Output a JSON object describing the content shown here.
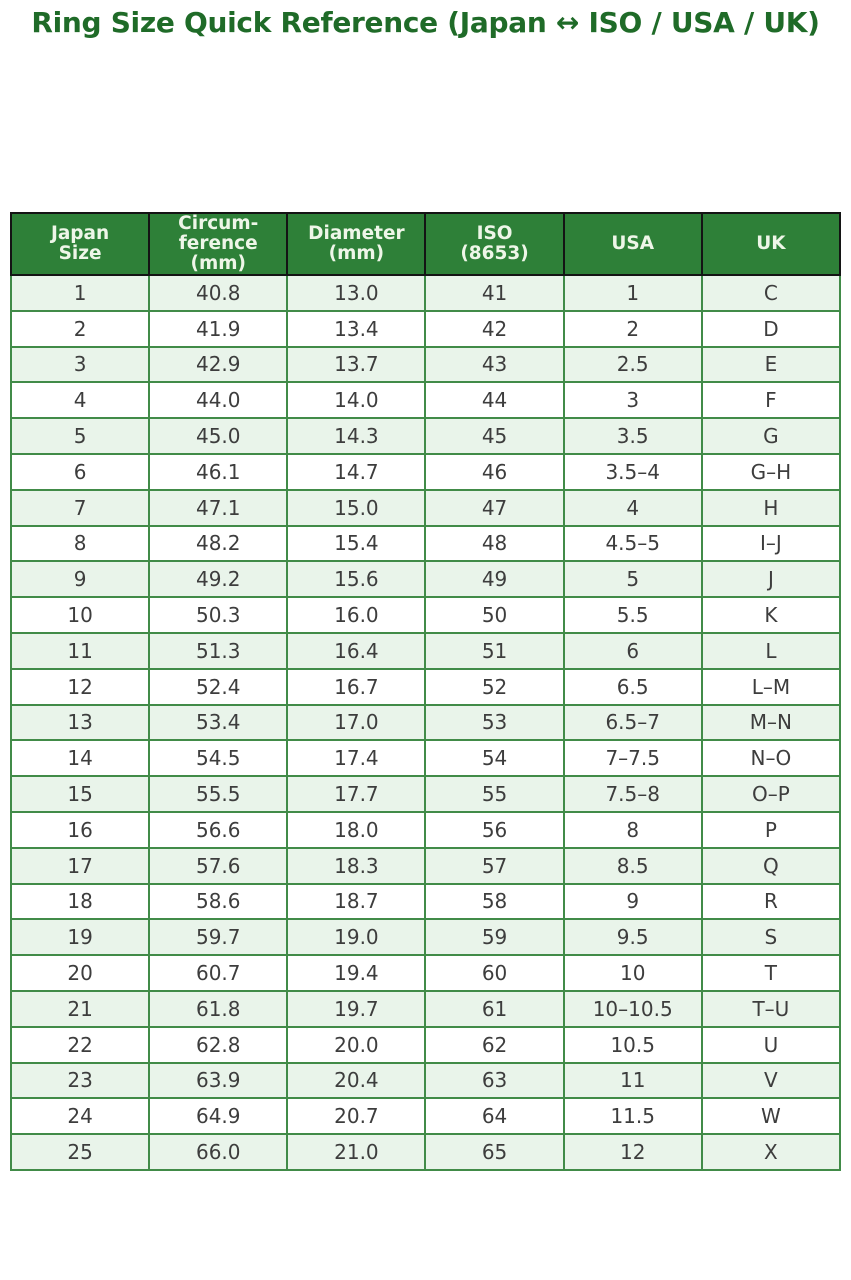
{
  "title": "Ring Size Quick Reference (Japan ↔ ISO / USA / UK)",
  "colors": {
    "title_green": "#1f6b28",
    "header_bg": "#2e8038",
    "header_text": "#eef6e8",
    "header_border": "#141414",
    "body_border": "#418b48",
    "row_bg": "#ffffff",
    "row_alt_bg": "#e9f4ea",
    "cell_text": "#3d3d3d"
  },
  "table": {
    "headers": [
      {
        "id": "japan-size",
        "label": "Japan\nSize"
      },
      {
        "id": "circumference-mm",
        "label": "Circum-\nference\n(mm)"
      },
      {
        "id": "diameter-mm",
        "label": "Diameter\n(mm)"
      },
      {
        "id": "iso-8653",
        "label": "ISO\n(8653)"
      },
      {
        "id": "usa",
        "label": "USA"
      },
      {
        "id": "uk",
        "label": "UK"
      }
    ]
  },
  "chart_data": {
    "type": "table",
    "title": "Ring Size Quick Reference (Japan ↔ ISO / USA / UK)",
    "columns": [
      "Japan Size",
      "Circumference (mm)",
      "Diameter (mm)",
      "ISO (8653)",
      "USA",
      "UK"
    ],
    "rows": [
      [
        "1",
        "40.8",
        "13.0",
        "41",
        "1",
        "C"
      ],
      [
        "2",
        "41.9",
        "13.4",
        "42",
        "2",
        "D"
      ],
      [
        "3",
        "42.9",
        "13.7",
        "43",
        "2.5",
        "E"
      ],
      [
        "4",
        "44.0",
        "14.0",
        "44",
        "3",
        "F"
      ],
      [
        "5",
        "45.0",
        "14.3",
        "45",
        "3.5",
        "G"
      ],
      [
        "6",
        "46.1",
        "14.7",
        "46",
        "3.5–4",
        "G–H"
      ],
      [
        "7",
        "47.1",
        "15.0",
        "47",
        "4",
        "H"
      ],
      [
        "8",
        "48.2",
        "15.4",
        "48",
        "4.5–5",
        "I–J"
      ],
      [
        "9",
        "49.2",
        "15.6",
        "49",
        "5",
        "J"
      ],
      [
        "10",
        "50.3",
        "16.0",
        "50",
        "5.5",
        "K"
      ],
      [
        "11",
        "51.3",
        "16.4",
        "51",
        "6",
        "L"
      ],
      [
        "12",
        "52.4",
        "16.7",
        "52",
        "6.5",
        "L–M"
      ],
      [
        "13",
        "53.4",
        "17.0",
        "53",
        "6.5–7",
        "M–N"
      ],
      [
        "14",
        "54.5",
        "17.4",
        "54",
        "7–7.5",
        "N–O"
      ],
      [
        "15",
        "55.5",
        "17.7",
        "55",
        "7.5–8",
        "O–P"
      ],
      [
        "16",
        "56.6",
        "18.0",
        "56",
        "8",
        "P"
      ],
      [
        "17",
        "57.6",
        "18.3",
        "57",
        "8.5",
        "Q"
      ],
      [
        "18",
        "58.6",
        "18.7",
        "58",
        "9",
        "R"
      ],
      [
        "19",
        "59.7",
        "19.0",
        "59",
        "9.5",
        "S"
      ],
      [
        "20",
        "60.7",
        "19.4",
        "60",
        "10",
        "T"
      ],
      [
        "21",
        "61.8",
        "19.7",
        "61",
        "10–10.5",
        "T–U"
      ],
      [
        "22",
        "62.8",
        "20.0",
        "62",
        "10.5",
        "U"
      ],
      [
        "23",
        "63.9",
        "20.4",
        "63",
        "11",
        "V"
      ],
      [
        "24",
        "64.9",
        "20.7",
        "64",
        "11.5",
        "W"
      ],
      [
        "25",
        "66.0",
        "21.0",
        "65",
        "12",
        "X"
      ]
    ]
  }
}
